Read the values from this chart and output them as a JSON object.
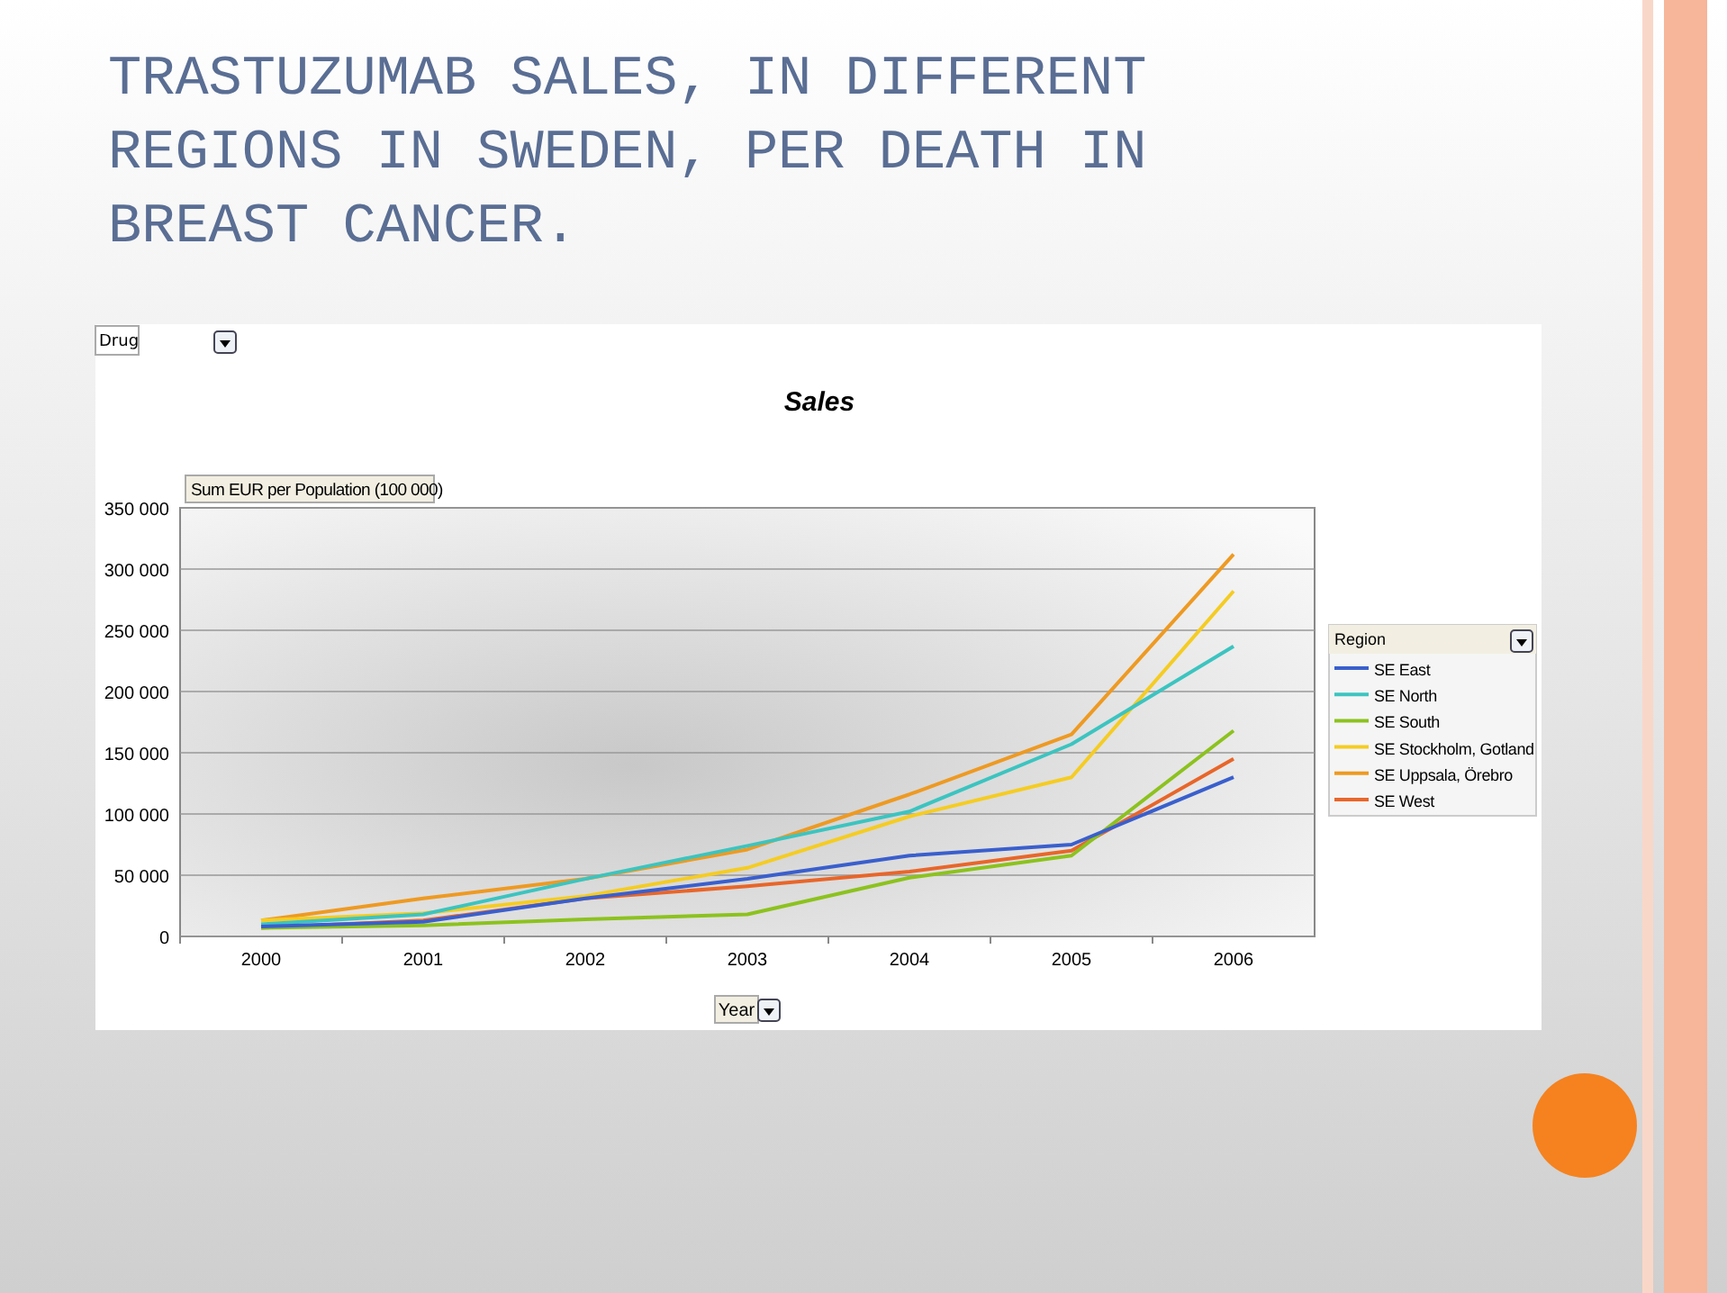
{
  "chart_data": {
    "type": "line",
    "title": "TRASTUZUMAB SALES, IN DIFFERENT REGIONS IN SWEDEN, PER DEATH IN BREAST CANCER.",
    "subtitle": "Sales",
    "ylabel": "Sum EUR per Population (100 000)",
    "xlabel": "Year",
    "legend_title": "Region",
    "annotations": [
      "Drug"
    ],
    "categories": [
      "2000",
      "2001",
      "2002",
      "2003",
      "2004",
      "2005",
      "2006"
    ],
    "ylim": [
      0,
      350000
    ],
    "yticks": [
      {
        "value": 0,
        "label": "0"
      },
      {
        "value": 50000,
        "label": "50 000"
      },
      {
        "value": 100000,
        "label": "100 000"
      },
      {
        "value": 150000,
        "label": "150 000"
      },
      {
        "value": 200000,
        "label": "200 000"
      },
      {
        "value": 250000,
        "label": "250 000"
      },
      {
        "value": 300000,
        "label": "300 000"
      },
      {
        "value": 350000,
        "label": "350 000"
      }
    ],
    "grid": "y",
    "legend": "right",
    "marker": "none",
    "line_style": "solid",
    "series": [
      {
        "name": "SE East",
        "color": "#3a5fcd",
        "values": [
          8000,
          12000,
          31000,
          47000,
          66000,
          75000,
          130000
        ]
      },
      {
        "name": "SE North",
        "color": "#3cc4c0",
        "values": [
          10000,
          18000,
          47000,
          74000,
          102000,
          157000,
          237000
        ]
      },
      {
        "name": "SE South",
        "color": "#8cc21e",
        "values": [
          7000,
          9000,
          14000,
          18000,
          48000,
          66000,
          168000
        ]
      },
      {
        "name": "SE Stockholm, Gotland",
        "color": "#f5cc22",
        "values": [
          13000,
          19000,
          33000,
          56000,
          98000,
          130000,
          282000
        ]
      },
      {
        "name": "SE Uppsala, Örebro",
        "color": "#ee9a22",
        "values": [
          13000,
          31000,
          47000,
          71000,
          116000,
          165000,
          312000
        ]
      },
      {
        "name": "SE West",
        "color": "#e8662a",
        "values": [
          7000,
          13000,
          31000,
          41000,
          53000,
          70000,
          145000
        ]
      }
    ]
  }
}
